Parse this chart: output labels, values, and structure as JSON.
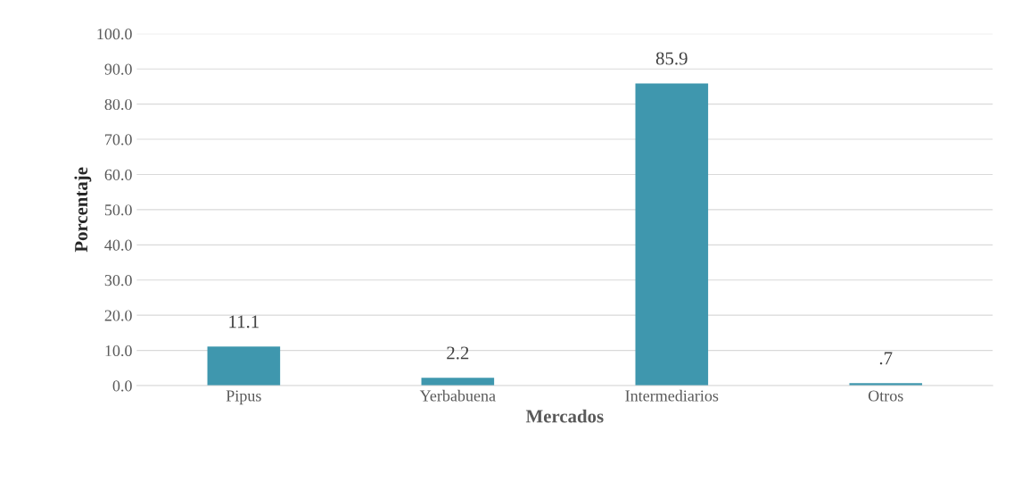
{
  "chart_data": {
    "type": "bar",
    "xlabel": "Mercados",
    "ylabel": "Porcentaje",
    "categories": [
      "Pipus",
      "Yerbabuena",
      "Intermediarios",
      "Otros"
    ],
    "values": [
      11.1,
      2.2,
      85.9,
      0.7
    ],
    "value_labels": [
      "11.1",
      "2.2",
      "85.9",
      ".7"
    ],
    "color": "#3f97ae",
    "ylim": [
      0,
      100
    ],
    "yticks": [
      {
        "value": 0,
        "label": "0.0"
      },
      {
        "value": 10,
        "label": "10.0"
      },
      {
        "value": 20,
        "label": "20.0"
      },
      {
        "value": 30,
        "label": "30.0"
      },
      {
        "value": 40,
        "label": "40.0"
      },
      {
        "value": 50,
        "label": "50.0"
      },
      {
        "value": 60,
        "label": "60.0"
      },
      {
        "value": 70,
        "label": "70.0"
      },
      {
        "value": 80,
        "label": "80.0"
      },
      {
        "value": 90,
        "label": "90.0"
      },
      {
        "value": 100,
        "label": "100.0"
      }
    ],
    "grid": "y",
    "legend": false
  }
}
